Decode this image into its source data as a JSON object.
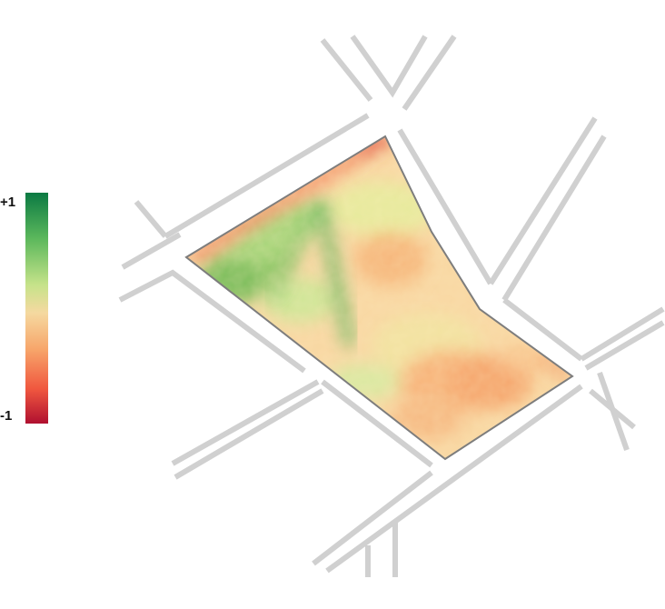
{
  "legend": {
    "max_label": "+1",
    "min_label": "-1",
    "color_stops": [
      "#0b7a43",
      "#5cb85c",
      "#c6e38a",
      "#f5d9a0",
      "#f7a56a",
      "#f0573f",
      "#b01030"
    ]
  },
  "map": {
    "road_color": "#d0d0d0",
    "field_outline_color": "#7d7d7d"
  }
}
